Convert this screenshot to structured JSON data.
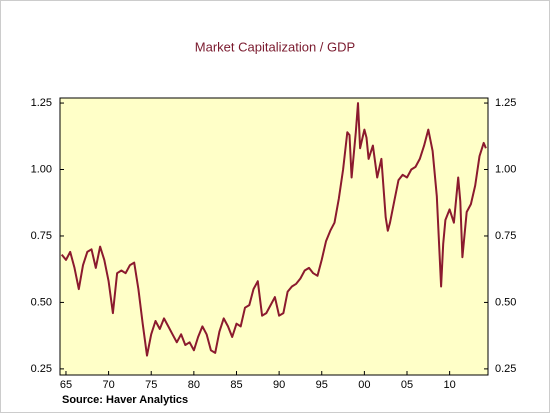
{
  "chart_data": {
    "type": "line",
    "title": "Market Capitalization / GDP",
    "source": "Source: Haver Analytics",
    "color": "#8b1a2e",
    "background": "#ffffc8",
    "x": [
      1964.5,
      1965,
      1965.5,
      1966,
      1966.5,
      1967,
      1967.5,
      1968,
      1968.5,
      1969,
      1969.5,
      1970,
      1970.5,
      1971,
      1971.5,
      1972,
      1972.5,
      1973,
      1973.5,
      1974,
      1974.5,
      1975,
      1975.5,
      1976,
      1976.5,
      1977,
      1977.5,
      1978,
      1978.5,
      1979,
      1979.5,
      1980,
      1980.5,
      1981,
      1981.5,
      1982,
      1982.5,
      1983,
      1983.5,
      1984,
      1984.5,
      1985,
      1985.5,
      1986,
      1986.5,
      1987,
      1987.5,
      1988,
      1988.5,
      1989,
      1989.5,
      1990,
      1990.5,
      1991,
      1991.5,
      1992,
      1992.5,
      1993,
      1993.5,
      1994,
      1994.5,
      1995,
      1995.5,
      1996,
      1996.5,
      1997,
      1997.5,
      1998,
      1998.25,
      1998.5,
      1999,
      1999.25,
      1999.5,
      2000,
      2000.25,
      2000.5,
      2001,
      2001.5,
      2002,
      2002.5,
      2002.75,
      2003,
      2003.5,
      2004,
      2004.5,
      2005,
      2005.5,
      2006,
      2006.5,
      2007,
      2007.5,
      2008,
      2008.5,
      2009,
      2009.25,
      2009.5,
      2010,
      2010.5,
      2011,
      2011.25,
      2011.5,
      2012,
      2012.5,
      2013,
      2013.5,
      2014,
      2014.25
    ],
    "values": [
      0.68,
      0.66,
      0.69,
      0.63,
      0.55,
      0.64,
      0.69,
      0.7,
      0.63,
      0.71,
      0.66,
      0.58,
      0.46,
      0.61,
      0.62,
      0.61,
      0.64,
      0.65,
      0.55,
      0.42,
      0.3,
      0.38,
      0.43,
      0.4,
      0.44,
      0.41,
      0.38,
      0.35,
      0.38,
      0.34,
      0.35,
      0.32,
      0.37,
      0.41,
      0.38,
      0.32,
      0.31,
      0.39,
      0.44,
      0.41,
      0.37,
      0.42,
      0.41,
      0.48,
      0.49,
      0.55,
      0.58,
      0.45,
      0.46,
      0.49,
      0.52,
      0.45,
      0.46,
      0.54,
      0.56,
      0.57,
      0.59,
      0.62,
      0.63,
      0.61,
      0.6,
      0.66,
      0.73,
      0.77,
      0.8,
      0.89,
      1.0,
      1.14,
      1.13,
      0.97,
      1.14,
      1.25,
      1.08,
      1.15,
      1.12,
      1.04,
      1.09,
      0.97,
      1.04,
      0.82,
      0.77,
      0.8,
      0.88,
      0.96,
      0.98,
      0.97,
      1.0,
      1.01,
      1.04,
      1.09,
      1.15,
      1.07,
      0.9,
      0.56,
      0.72,
      0.81,
      0.85,
      0.8,
      0.97,
      0.88,
      0.67,
      0.84,
      0.87,
      0.94,
      1.05,
      1.1,
      1.08
    ],
    "xlim": [
      1964.3,
      2014.5
    ],
    "xticks": [
      {
        "value": 1965,
        "label": "65"
      },
      {
        "value": 1970,
        "label": "70"
      },
      {
        "value": 1975,
        "label": "75"
      },
      {
        "value": 1980,
        "label": "80"
      },
      {
        "value": 1985,
        "label": "85"
      },
      {
        "value": 1990,
        "label": "90"
      },
      {
        "value": 1995,
        "label": "95"
      },
      {
        "value": 2000,
        "label": "00"
      },
      {
        "value": 2005,
        "label": "05"
      },
      {
        "value": 2010,
        "label": "10"
      }
    ],
    "ylim": [
      0.227,
      1.269
    ],
    "yticks": [
      0.25,
      {
        "value": 0.5,
        "label": "0.50"
      },
      0.75,
      {
        "value": 1,
        "label": "1.00"
      },
      1.25
    ]
  }
}
